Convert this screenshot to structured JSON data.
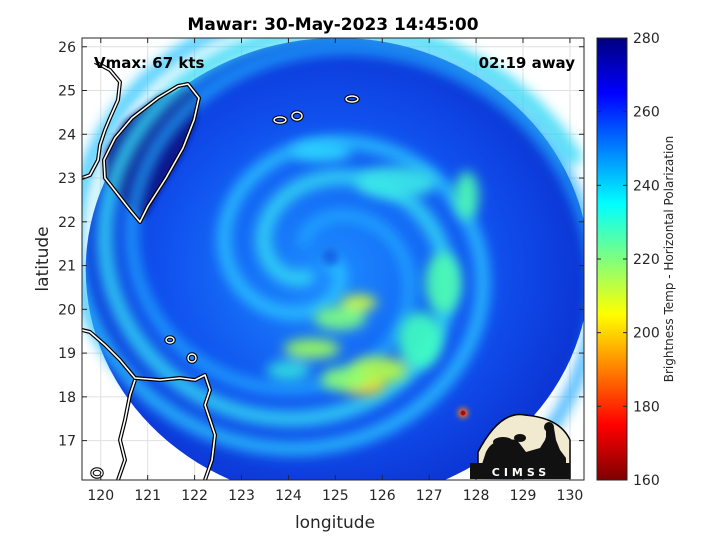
{
  "chart_data": {
    "type": "heatmap",
    "title": "Mawar: 30-May-2023 14:45:00",
    "xlabel": "longitude",
    "ylabel": "latitude",
    "xlim": [
      119.6,
      130.3
    ],
    "ylim": [
      16.1,
      26.2
    ],
    "x_ticks": [
      120,
      121,
      122,
      123,
      124,
      125,
      126,
      127,
      128,
      129,
      130
    ],
    "y_ticks": [
      17,
      18,
      19,
      20,
      21,
      22,
      23,
      24,
      25,
      26
    ],
    "grid": true,
    "colorbar": {
      "label": "Brightness Temp - Horizontal Polarization",
      "range": [
        160,
        280
      ],
      "ticks": [
        160,
        180,
        200,
        220,
        240,
        260,
        280
      ],
      "colormap": "jet"
    },
    "storm_center": {
      "lon": 124.6,
      "lat": 21.1
    },
    "swath_center": {
      "lon": 125.05,
      "lat": 20.9
    },
    "annotations": {
      "vmax": "Vmax: 67 kts",
      "time_away": "02:19 away"
    }
  },
  "logo": {
    "text": "CIMSS"
  },
  "colors": {
    "cold_low": "#7f0000",
    "warm_high": "#00007f",
    "coast_line": "#ffffff"
  }
}
